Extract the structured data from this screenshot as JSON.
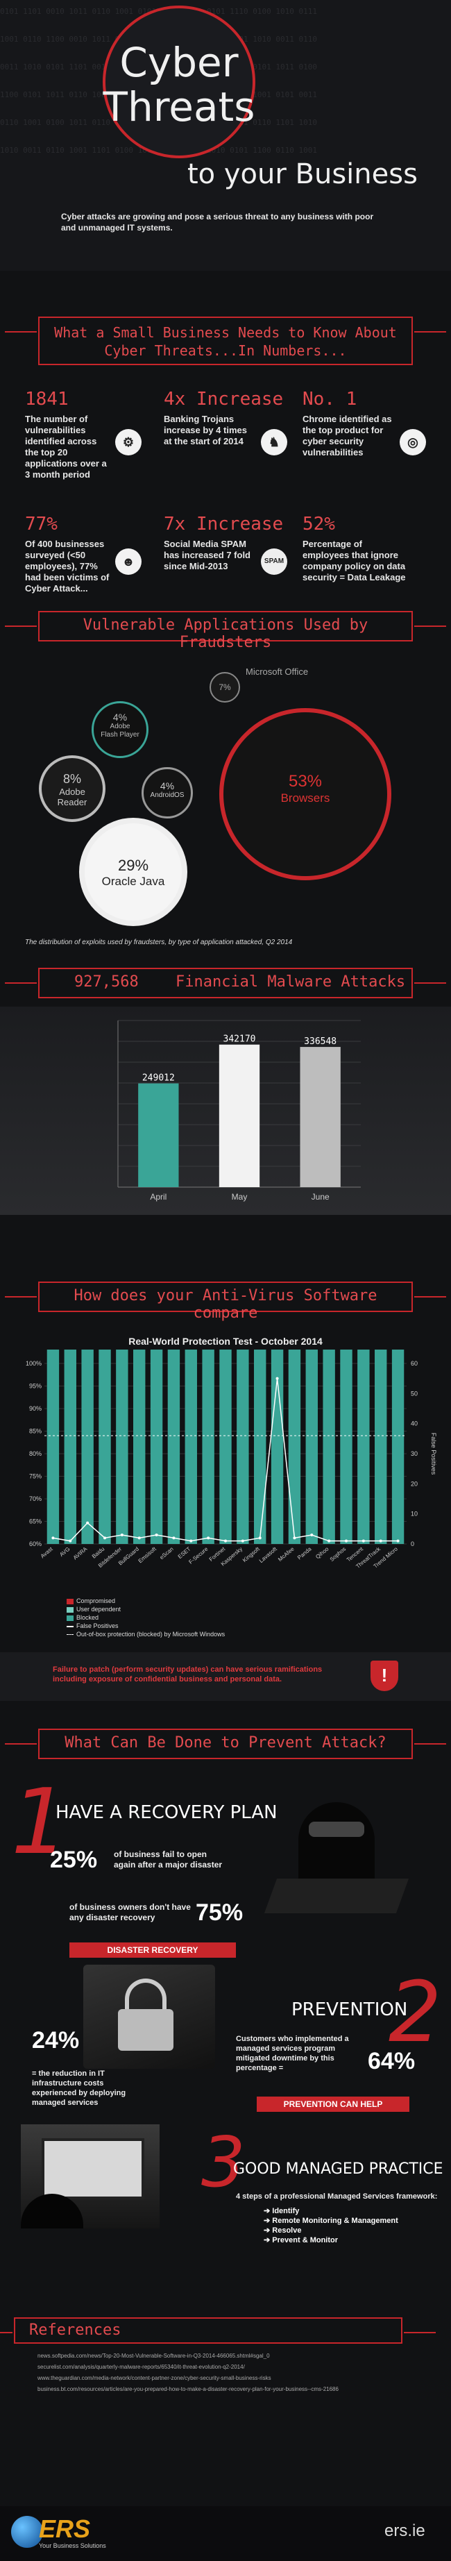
{
  "header": {
    "title_line1": "Cyber",
    "title_line2": "Threats",
    "subtitle": "to your Business",
    "intro": "Cyber attacks are growing and pose a serious threat to any business with poor and unmanaged IT systems."
  },
  "section1": {
    "heading": "What a Small Business Needs to Know About Cyber Threats...In Numbers...",
    "stats": [
      {
        "number": "1841",
        "text": "The number of vulnerabilities identified across the top 20 applications over a 3 month period",
        "icon": "gear-icon"
      },
      {
        "number": "4x Increase",
        "text": "Banking Trojans increase by 4 times at the start of 2014",
        "icon": "trojan-horse-icon"
      },
      {
        "number": "No. 1",
        "text": "Chrome identified as the top product for cyber security vulnerabilities",
        "icon": "chrome-icon"
      },
      {
        "number": "77%",
        "text": "Of 400 businesses surveyed (<50 employees), 77% had been victims of Cyber Attack...",
        "icon": "user-icon"
      },
      {
        "number": "7x Increase",
        "text": "Social Media SPAM has increased 7 fold since Mid-2013",
        "icon": "spam-icon",
        "icon_label": "SPAM"
      },
      {
        "number": "52%",
        "text": "Percentage of employees that ignore company policy on data security = Data Leakage",
        "icon": "data-leak-icon"
      }
    ]
  },
  "section2": {
    "heading": "Vulnerable Applications Used by Fraudsters",
    "bubbles": [
      {
        "pct": "7%",
        "label": "Microsoft Office"
      },
      {
        "pct": "4%",
        "label": "Adobe Flash Player"
      },
      {
        "pct": "8%",
        "label": "Adobe Reader"
      },
      {
        "pct": "4%",
        "label": "AndroidOS"
      },
      {
        "pct": "53%",
        "label": "Browsers"
      },
      {
        "pct": "29%",
        "label": "Oracle Java"
      }
    ],
    "caption": "The distribution of exploits used by fraudsters, by type of application attacked, Q2 2014"
  },
  "section3": {
    "heading_number": "927,568",
    "heading_text": "Financial Malware Attacks",
    "chart_data": {
      "type": "bar",
      "categories": [
        "April",
        "May",
        "June"
      ],
      "values": [
        249012,
        342170,
        336548
      ],
      "value_labels": [
        "249012",
        "342170",
        "336548"
      ],
      "ylim": [
        0,
        400000
      ],
      "colors": [
        "#3aa597",
        "#f2f2f2",
        "#bdbdbd"
      ]
    }
  },
  "section4": {
    "heading": "How does your Anti-Virus Software compare",
    "chart_title": "Real-World Protection Test - October 2014",
    "right_axis_label": "False Positives",
    "chart_data": {
      "type": "bar",
      "categories": [
        "Avast",
        "AVG",
        "AVIRA",
        "Baidu",
        "Bitdefender",
        "BullGuard",
        "Emsisoft",
        "eScan",
        "ESET",
        "F-Secure",
        "Fortinet",
        "Kaspersky",
        "Kingsoft",
        "Lavasoft",
        "McAfee",
        "Panda",
        "Qihoo",
        "Sophos",
        "Tencent",
        "ThreatTrack",
        "Trend Micro"
      ],
      "series": [
        {
          "name": "Compromised",
          "values": [
            1.5,
            2.5,
            6,
            3,
            1,
            1,
            1.5,
            2,
            4,
            1,
            6.5,
            1,
            11,
            8,
            4,
            1.5,
            3,
            3,
            4.5,
            7.5,
            0.5
          ]
        },
        {
          "name": "User dependent",
          "values": [
            0,
            0,
            0,
            0,
            0,
            0,
            0,
            0,
            0,
            0,
            0,
            0,
            0,
            0,
            0,
            0,
            0,
            0,
            0,
            0,
            0
          ]
        },
        {
          "name": "Blocked",
          "values": [
            98.5,
            97.5,
            94,
            97,
            99,
            99,
            98.5,
            98,
            96,
            99,
            93.5,
            99,
            89,
            92,
            96,
            98.5,
            97,
            97,
            95.5,
            92.5,
            99.5
          ]
        },
        {
          "name": "False Positives",
          "values": [
            2,
            1,
            7,
            2,
            3,
            2,
            3,
            2,
            1,
            2,
            1,
            1,
            2,
            55,
            2,
            3,
            1,
            1,
            1,
            1,
            1
          ]
        }
      ],
      "ylim": [
        60,
        100
      ],
      "yticks": [
        "60%",
        "65%",
        "70%",
        "75%",
        "80%",
        "85%",
        "90%",
        "95%",
        "100%"
      ],
      "y2lim": [
        0,
        60
      ],
      "y2ticks": [
        "0",
        "10",
        "20",
        "30",
        "40",
        "50",
        "60"
      ],
      "legend": [
        "Compromised",
        "User dependent",
        "Blocked",
        "False Positives",
        "Out-of-box protection (blocked) by Microsoft Windows"
      ],
      "colors": {
        "compromised": "#c8262b",
        "blocked": "#3aa597",
        "user": "#7ad0c2",
        "fp": "#ffffff"
      }
    },
    "warning": "Failure to patch (perform security updates) can have serious ramifications including exposure of confidential business and personal data."
  },
  "section5": {
    "heading": "What Can Be Done to Prevent Attack?",
    "step1": {
      "number": "1",
      "title": "HAVE A RECOVERY PLAN",
      "stat1_pct": "25%",
      "stat1_text": "of business fail to open again after a major disaster",
      "stat2_text": "of business owners don't have any disaster recovery",
      "stat2_pct": "75%",
      "pill": "DISASTER RECOVERY"
    },
    "step2": {
      "number": "2",
      "title": "PREVENTION",
      "stat1_pct": "24%",
      "stat1_text": "= the reduction in IT infrastructure costs experienced by deploying managed services",
      "stat2_text": "Customers who implemented a managed services program mitigated downtime by this percentage =",
      "stat2_pct": "64%",
      "pill": "PREVENTION CAN HELP"
    },
    "step3": {
      "number": "3",
      "title": "GOOD MANAGED PRACTICE",
      "intro": "4 steps of a professional Managed Services framework:",
      "steps": [
        "Identify",
        "Remote Monitoring & Management",
        "Resolve",
        "Prevent & Monitor"
      ]
    }
  },
  "references": {
    "heading": "References",
    "items": [
      "news.softpedia.com/news/Top-20-Most-Vulnerable-Software-in-Q3-2014-466065.shtml#sgal_0",
      "securelist.com/analysis/quarterly-malware-reports/65340/it-threat-evolution-q2-2014/",
      "www.theguardian.com/media-network/content-partner-zone/cyber-security-small-business-risks",
      "business.bt.com/resources/articles/are-you-prepared-how-to-make-a-disaster-recovery-plan-for-your-business--cms-21686"
    ]
  },
  "footer": {
    "logo": "ERS",
    "tagline": "Your Business Solutions",
    "site": "ers.ie"
  }
}
